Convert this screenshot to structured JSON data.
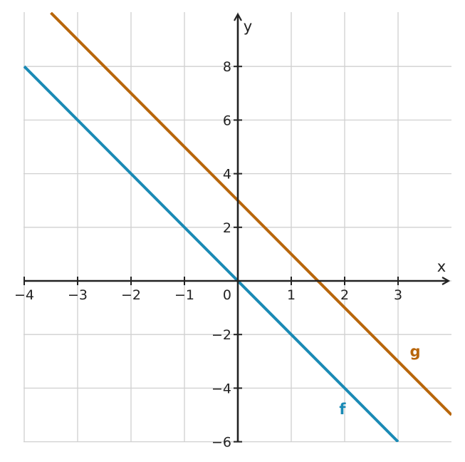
{
  "chart_data": {
    "type": "line",
    "title": "",
    "xlabel": "x",
    "ylabel": "y",
    "xlim": [
      -4,
      4
    ],
    "ylim": [
      -6,
      10
    ],
    "grid": true,
    "x_ticks": [
      -4,
      -3,
      -2,
      -1,
      1,
      2,
      3
    ],
    "x_tick_labels": [
      "−4",
      "−3",
      "−2",
      "−1",
      "1",
      "2",
      "3"
    ],
    "y_ticks": [
      -6,
      -4,
      -2,
      2,
      4,
      6,
      8
    ],
    "y_tick_labels": [
      "−6",
      "−4",
      "−2",
      "2",
      "4",
      "6",
      "8"
    ],
    "origin_label": "0",
    "series": [
      {
        "name": "f",
        "color": "#1a8ab5",
        "x": [
          -4,
          3
        ],
        "y": [
          8,
          -6
        ]
      },
      {
        "name": "g",
        "color": "#b8660b",
        "x": [
          -3.5,
          4
        ],
        "y": [
          10,
          -5
        ]
      }
    ]
  }
}
